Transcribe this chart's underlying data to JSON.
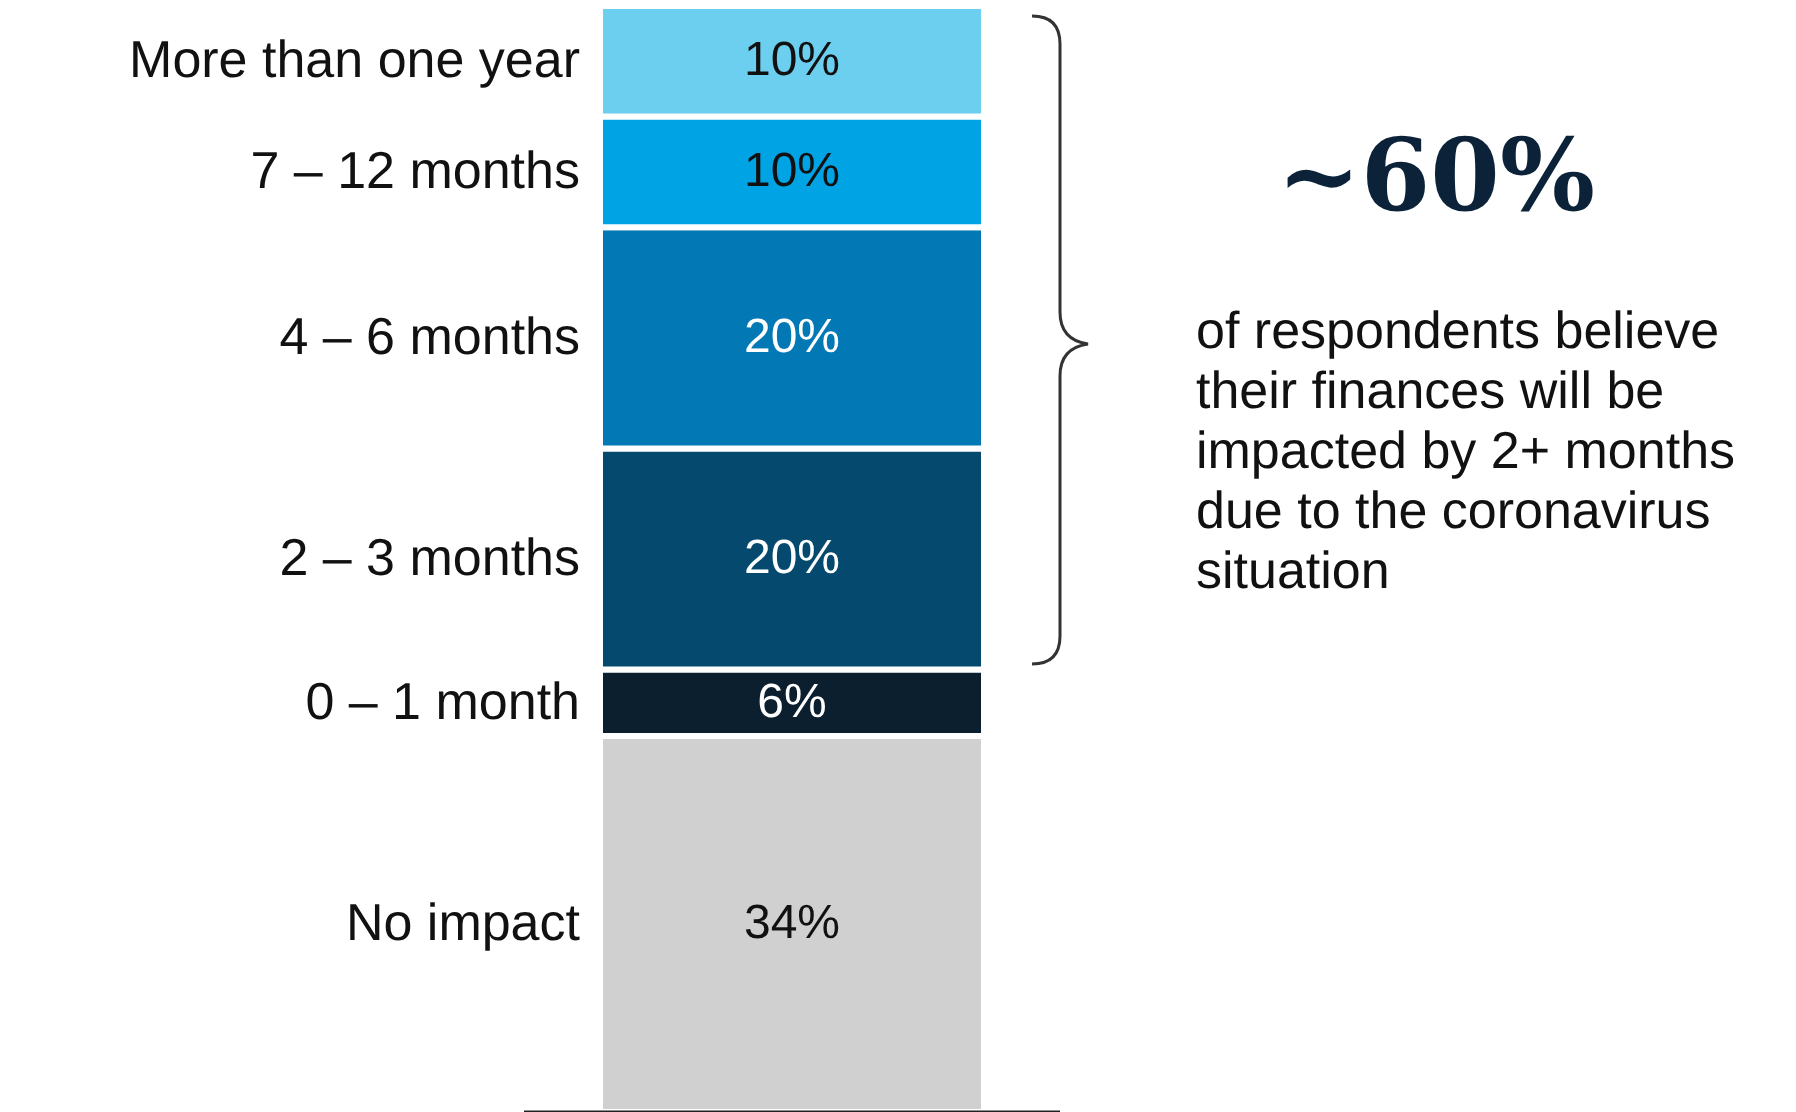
{
  "chart_data": {
    "type": "bar",
    "stacked": true,
    "categories": [
      null
    ],
    "series": [
      {
        "name": "No impact",
        "color": "#d0d0d0",
        "values": [
          34
        ],
        "value_labels": [
          "34%"
        ]
      },
      {
        "name": "0 – 1 month",
        "color": "#0b1f2e",
        "values": [
          6
        ],
        "value_labels": [
          "6%"
        ]
      },
      {
        "name": "2 – 3 months",
        "color": "#054a6e",
        "values": [
          20
        ],
        "value_labels": [
          "20%"
        ]
      },
      {
        "name": "4 – 6 months",
        "color": "#0278b4",
        "values": [
          20
        ],
        "value_labels": [
          "20%"
        ]
      },
      {
        "name": "7 – 12 months",
        "color": "#00a4e4",
        "values": [
          10
        ],
        "value_labels": [
          "10%"
        ]
      },
      {
        "name": "More than one year",
        "color": "#6dcff0",
        "values": [
          10
        ],
        "value_labels": [
          "10%"
        ]
      }
    ],
    "annotations": [
      "~60%",
      "of respondents believe their finances will be impacted by 2+ months due to the coronavirus situation"
    ]
  }
}
